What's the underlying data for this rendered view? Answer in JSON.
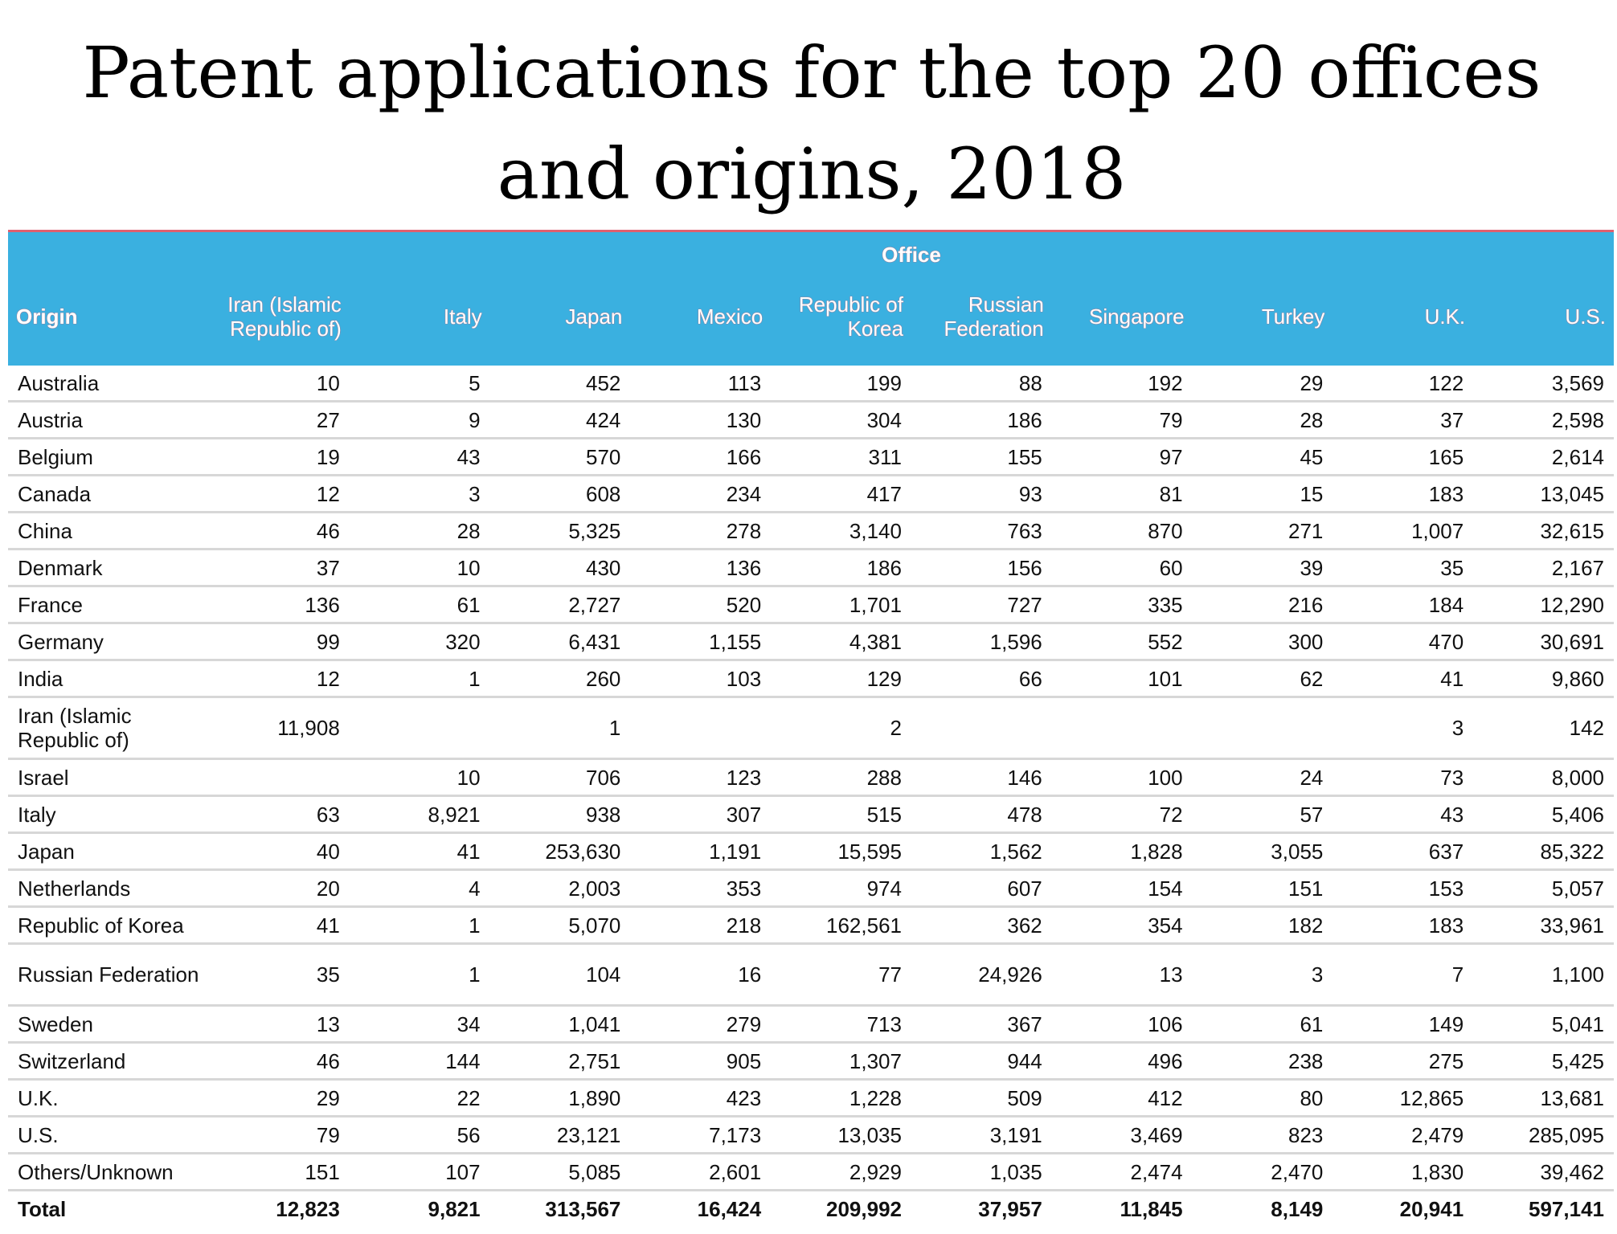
{
  "title": "Patent applications for the top 20 offices and origins, 2018",
  "table": {
    "group_header": "Office",
    "origin_header": "Origin",
    "columns": [
      "Iran (Islamic Republic of)",
      "Italy",
      "Japan",
      "Mexico",
      "Republic of Korea",
      "Russian Federation",
      "Singapore",
      "Turkey",
      "U.K.",
      "U.S."
    ],
    "rows": [
      {
        "origin": "Australia",
        "values": [
          "10",
          "5",
          "452",
          "113",
          "199",
          "88",
          "192",
          "29",
          "122",
          "3,569"
        ]
      },
      {
        "origin": "Austria",
        "values": [
          "27",
          "9",
          "424",
          "130",
          "304",
          "186",
          "79",
          "28",
          "37",
          "2,598"
        ]
      },
      {
        "origin": "Belgium",
        "values": [
          "19",
          "43",
          "570",
          "166",
          "311",
          "155",
          "97",
          "45",
          "165",
          "2,614"
        ]
      },
      {
        "origin": "Canada",
        "values": [
          "12",
          "3",
          "608",
          "234",
          "417",
          "93",
          "81",
          "15",
          "183",
          "13,045"
        ]
      },
      {
        "origin": "China",
        "values": [
          "46",
          "28",
          "5,325",
          "278",
          "3,140",
          "763",
          "870",
          "271",
          "1,007",
          "32,615"
        ]
      },
      {
        "origin": "Denmark",
        "values": [
          "37",
          "10",
          "430",
          "136",
          "186",
          "156",
          "60",
          "39",
          "35",
          "2,167"
        ]
      },
      {
        "origin": "France",
        "values": [
          "136",
          "61",
          "2,727",
          "520",
          "1,701",
          "727",
          "335",
          "216",
          "184",
          "12,290"
        ]
      },
      {
        "origin": "Germany",
        "values": [
          "99",
          "320",
          "6,431",
          "1,155",
          "4,381",
          "1,596",
          "552",
          "300",
          "470",
          "30,691"
        ]
      },
      {
        "origin": "India",
        "values": [
          "12",
          "1",
          "260",
          "103",
          "129",
          "66",
          "101",
          "62",
          "41",
          "9,860"
        ]
      },
      {
        "origin": "Iran (Islamic Republic of)",
        "values": [
          "11,908",
          "",
          "1",
          "",
          "2",
          "",
          "",
          "",
          "3",
          "142"
        ]
      },
      {
        "origin": "Israel",
        "values": [
          "",
          "10",
          "706",
          "123",
          "288",
          "146",
          "100",
          "24",
          "73",
          "8,000"
        ]
      },
      {
        "origin": "Italy",
        "values": [
          "63",
          "8,921",
          "938",
          "307",
          "515",
          "478",
          "72",
          "57",
          "43",
          "5,406"
        ]
      },
      {
        "origin": "Japan",
        "values": [
          "40",
          "41",
          "253,630",
          "1,191",
          "15,595",
          "1,562",
          "1,828",
          "3,055",
          "637",
          "85,322"
        ]
      },
      {
        "origin": "Netherlands",
        "values": [
          "20",
          "4",
          "2,003",
          "353",
          "974",
          "607",
          "154",
          "151",
          "153",
          "5,057"
        ]
      },
      {
        "origin": "Republic of Korea",
        "values": [
          "41",
          "1",
          "5,070",
          "218",
          "162,561",
          "362",
          "354",
          "182",
          "183",
          "33,961"
        ]
      },
      {
        "origin": "Russian Federation",
        "values": [
          "35",
          "1",
          "104",
          "16",
          "77",
          "24,926",
          "13",
          "3",
          "7",
          "1,100"
        ]
      },
      {
        "origin": "Sweden",
        "values": [
          "13",
          "34",
          "1,041",
          "279",
          "713",
          "367",
          "106",
          "61",
          "149",
          "5,041"
        ]
      },
      {
        "origin": "Switzerland",
        "values": [
          "46",
          "144",
          "2,751",
          "905",
          "1,307",
          "944",
          "496",
          "238",
          "275",
          "5,425"
        ]
      },
      {
        "origin": "U.K.",
        "values": [
          "29",
          "22",
          "1,890",
          "423",
          "1,228",
          "509",
          "412",
          "80",
          "12,865",
          "13,681"
        ]
      },
      {
        "origin": "U.S.",
        "values": [
          "79",
          "56",
          "23,121",
          "7,173",
          "13,035",
          "3,191",
          "3,469",
          "823",
          "2,479",
          "285,095"
        ]
      },
      {
        "origin": "Others/Unknown",
        "values": [
          "151",
          "107",
          "5,085",
          "2,601",
          "2,929",
          "1,035",
          "2,474",
          "2,470",
          "1,830",
          "39,462"
        ]
      }
    ],
    "total": {
      "origin": "Total",
      "values": [
        "12,823",
        "9,821",
        "313,567",
        "16,424",
        "209,992",
        "37,957",
        "11,845",
        "8,149",
        "20,941",
        "597,141"
      ]
    }
  }
}
